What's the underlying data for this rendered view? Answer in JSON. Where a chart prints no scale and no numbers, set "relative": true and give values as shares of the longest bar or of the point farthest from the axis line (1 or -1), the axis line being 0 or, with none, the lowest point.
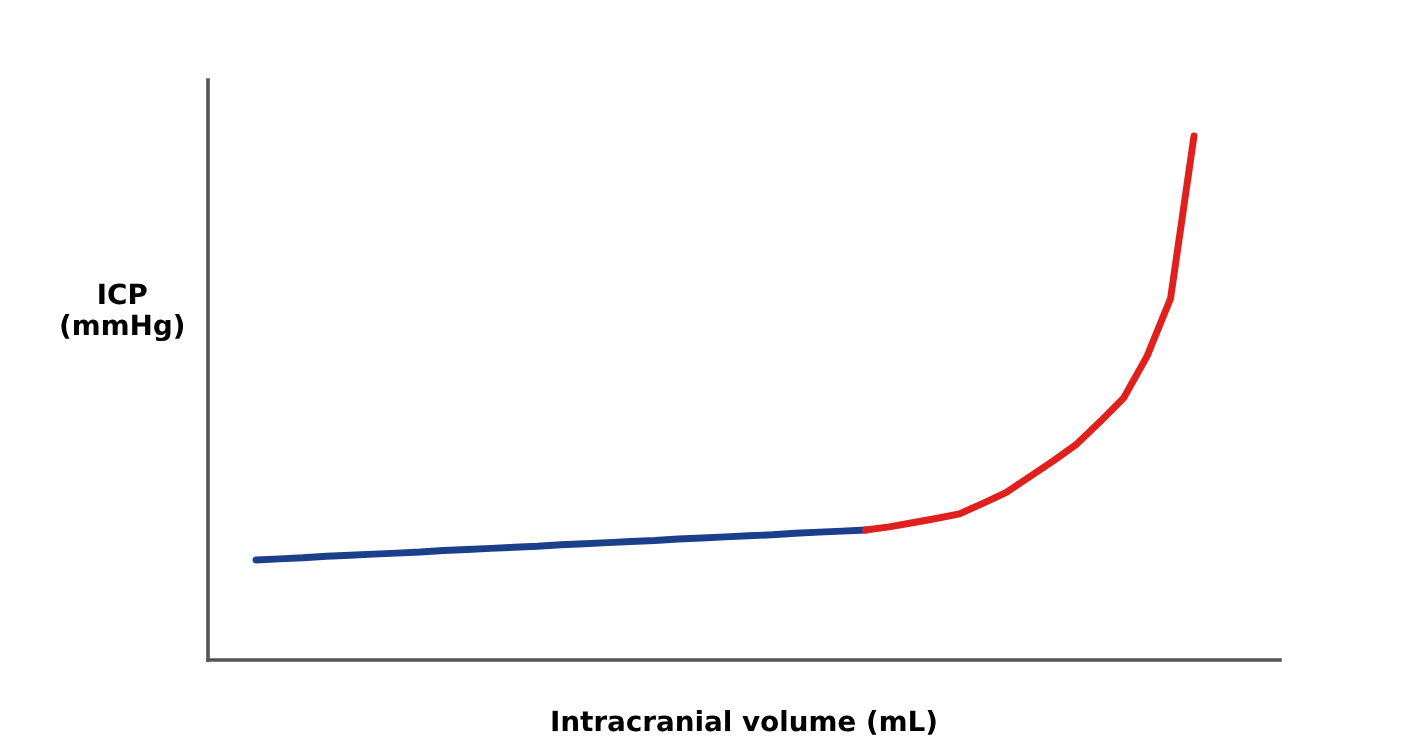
{
  "chart_data": {
    "type": "line",
    "relative": true,
    "xlabel": "Intracranial volume (mL)",
    "ylabel": "ICP\n(mmHg)",
    "marker": "none",
    "line_style": "solid",
    "tick_labels": false,
    "categories": [
      null,
      null,
      null,
      null,
      null,
      null,
      null,
      null,
      null,
      null,
      null,
      null,
      null,
      null,
      null,
      null,
      null,
      null,
      null,
      null,
      null,
      null,
      null,
      null,
      null,
      null,
      null,
      null,
      null,
      null,
      null,
      null,
      null,
      null,
      null,
      null,
      null,
      null,
      null,
      null,
      null
    ],
    "series": [
      {
        "color": "#1c3f8c",
        "values": [
          0.191,
          0.193,
          0.195,
          0.198,
          0.2,
          0.202,
          0.204,
          0.206,
          0.209,
          0.211,
          0.213,
          0.215,
          0.217,
          0.22,
          0.222,
          0.224,
          0.226,
          0.228,
          0.231,
          0.233,
          0.235,
          0.237,
          0.239,
          0.242,
          0.244,
          0.246,
          0.248,
          null,
          null,
          null,
          null,
          null,
          null,
          null,
          null,
          null,
          null,
          null,
          null,
          null,
          null
        ]
      },
      {
        "color": "#e0201c",
        "values": [
          null,
          null,
          null,
          null,
          null,
          null,
          null,
          null,
          null,
          null,
          null,
          null,
          null,
          null,
          null,
          null,
          null,
          null,
          null,
          null,
          null,
          null,
          null,
          null,
          null,
          null,
          0.248,
          0.254,
          0.262,
          0.27,
          0.279,
          0.299,
          0.32,
          0.35,
          0.38,
          0.412,
          0.455,
          0.5,
          0.58,
          0.69,
          1.0
        ]
      }
    ]
  }
}
